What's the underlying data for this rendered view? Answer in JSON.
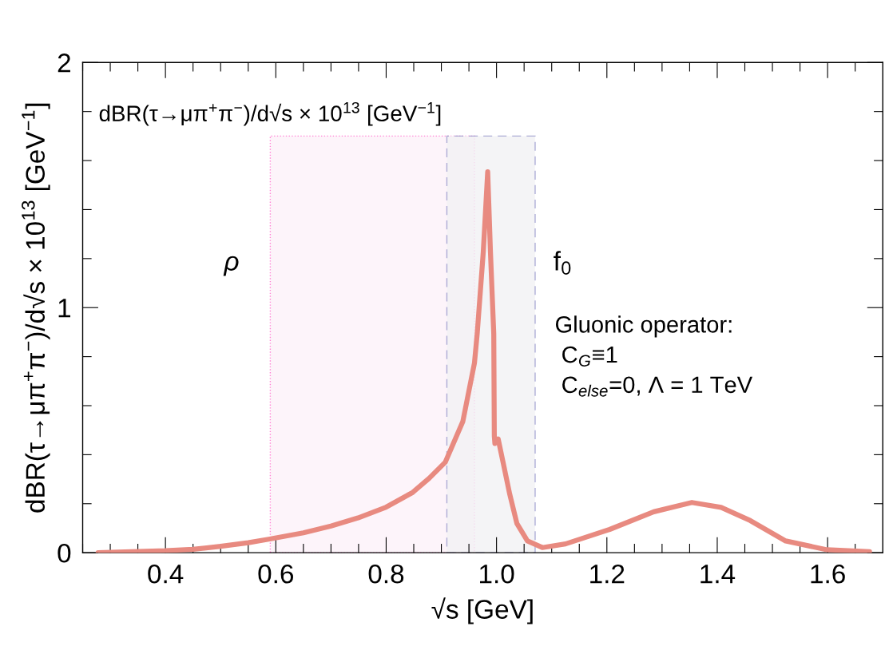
{
  "chart_data": {
    "type": "line",
    "xlabel": "√s [GeV]",
    "ylabel": "dBR(τ→μπ$^{+}$π$^{−}$)/d√s × 10$^{13}$ [GeV$^{−1}$]",
    "annotations": [
      "dBR(τ→μπ$^{+}$π$^{−}$)/d√s × 10$^{13}$ [GeV$^{−1}$]",
      "Gluonic operator:\n C$_{G}$≡1\n C$_{else}$=0, Λ = 1 TeV"
    ],
    "xlim": [
      0.25,
      1.7
    ],
    "ylim": [
      0,
      2
    ],
    "xticks": [
      {
        "value": 0.25,
        "label": null
      },
      {
        "value": 0.3,
        "label": null
      },
      {
        "value": 0.35,
        "label": null
      },
      0.4,
      {
        "value": 0.45,
        "label": null
      },
      {
        "value": 0.5,
        "label": null
      },
      {
        "value": 0.55,
        "label": null
      },
      0.6,
      {
        "value": 0.65,
        "label": null
      },
      {
        "value": 0.7,
        "label": null
      },
      {
        "value": 0.75,
        "label": null
      },
      0.8,
      {
        "value": 0.85,
        "label": null
      },
      {
        "value": 0.9,
        "label": null
      },
      {
        "value": 0.95,
        "label": null
      },
      {
        "value": 1.0,
        "label": "1.0"
      },
      {
        "value": 1.05,
        "label": null
      },
      {
        "value": 1.1,
        "label": null
      },
      {
        "value": 1.15,
        "label": null
      },
      1.2,
      {
        "value": 1.25,
        "label": null
      },
      {
        "value": 1.3,
        "label": null
      },
      {
        "value": 1.35,
        "label": null
      },
      1.4,
      {
        "value": 1.45,
        "label": null
      },
      {
        "value": 1.5,
        "label": null
      },
      {
        "value": 1.55,
        "label": null
      },
      1.6,
      {
        "value": 1.65,
        "label": null
      }
    ],
    "yticks": [
      0,
      {
        "value": 0.2,
        "label": null
      },
      {
        "value": 0.4,
        "label": null
      },
      {
        "value": 0.6,
        "label": null
      },
      {
        "value": 0.8,
        "label": null
      },
      1,
      {
        "value": 1.2,
        "label": null
      },
      {
        "value": 1.4,
        "label": null
      },
      {
        "value": 1.6,
        "label": null
      },
      {
        "value": 1.8,
        "label": null
      },
      2
    ],
    "grid": false,
    "marker": "none",
    "line_style": "solid",
    "bands": [
      {
        "axis": "x",
        "from": 0.59,
        "to": 0.96,
        "label": "ρ",
        "color": "#ff66cc"
      },
      {
        "axis": "x",
        "from": 0.91,
        "to": 1.07,
        "label": "f$_{0}$",
        "color": "#9999cc"
      }
    ],
    "series": [
      {
        "color": "#e88a80",
        "x": [
          0.278,
          0.4,
          0.45,
          0.5,
          0.55,
          0.587,
          0.65,
          0.7,
          0.749,
          0.8,
          0.848,
          0.878,
          0.907,
          0.939,
          0.96,
          0.965,
          0.976,
          0.984,
          0.989,
          0.995,
          0.996,
          0.997,
          1.003,
          1.013,
          1.024,
          1.037,
          1.056,
          1.083,
          1.125,
          1.205,
          1.285,
          1.354,
          1.407,
          1.46,
          1.524,
          1.599,
          1.676
        ],
        "values": [
          0,
          0.008,
          0.014,
          0.026,
          0.041,
          0.055,
          0.081,
          0.109,
          0.142,
          0.186,
          0.246,
          0.304,
          0.369,
          0.536,
          0.774,
          0.894,
          1.227,
          1.554,
          1.227,
          0.894,
          0.476,
          0.446,
          0.464,
          0.357,
          0.238,
          0.119,
          0.048,
          0.021,
          0.036,
          0.095,
          0.167,
          0.205,
          0.185,
          0.131,
          0.048,
          0.012,
          0.004
        ]
      }
    ]
  }
}
